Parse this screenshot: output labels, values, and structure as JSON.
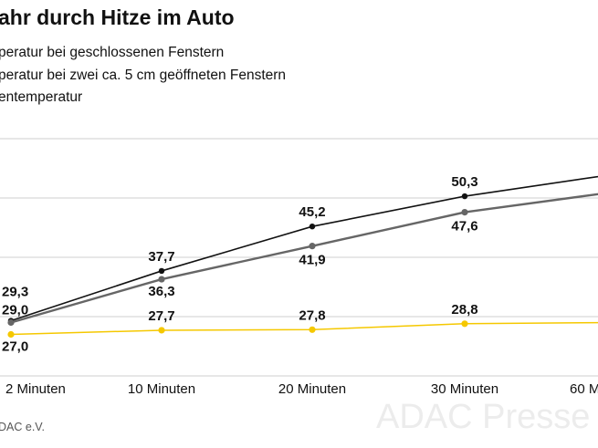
{
  "title": "ahr durch Hitze im Auto",
  "legend": [
    {
      "label": "peratur bei geschlossenen Fenstern"
    },
    {
      "label": "peratur bei zwei ca. 5 cm geöffneten Fenstern"
    },
    {
      "label": "entemperatur"
    }
  ],
  "source": "DAC e.V.",
  "watermark": "ADAC Presse",
  "colors": {
    "closed": "#111111",
    "open": "#666666",
    "outside": "#f5c800",
    "grid": "#cfcfcf"
  },
  "chart_data": {
    "type": "line",
    "categories": [
      "2 Minuten",
      "10 Minuten",
      "20 Minuten",
      "30 Minuten",
      "60 M"
    ],
    "series": [
      {
        "name": "peratur bei geschlossenen Fenstern",
        "values": [
          29.3,
          37.7,
          45.2,
          50.3,
          54.0
        ],
        "labels": [
          "29,3",
          "37,7",
          "45,2",
          "50,3",
          ""
        ]
      },
      {
        "name": "peratur bei zwei ca. 5 cm geöffneten Fenstern",
        "values": [
          29.0,
          36.3,
          41.9,
          47.6,
          51.0
        ],
        "labels": [
          "29,0",
          "36,3",
          "41,9",
          "47,6",
          ""
        ]
      },
      {
        "name": "entemperatur",
        "values": [
          27.0,
          27.7,
          27.8,
          28.8,
          29.0
        ],
        "labels": [
          "27,0",
          "27,7",
          "27,8",
          "28,8",
          ""
        ]
      }
    ],
    "ylim": [
      20,
      60
    ],
    "grid": true
  }
}
